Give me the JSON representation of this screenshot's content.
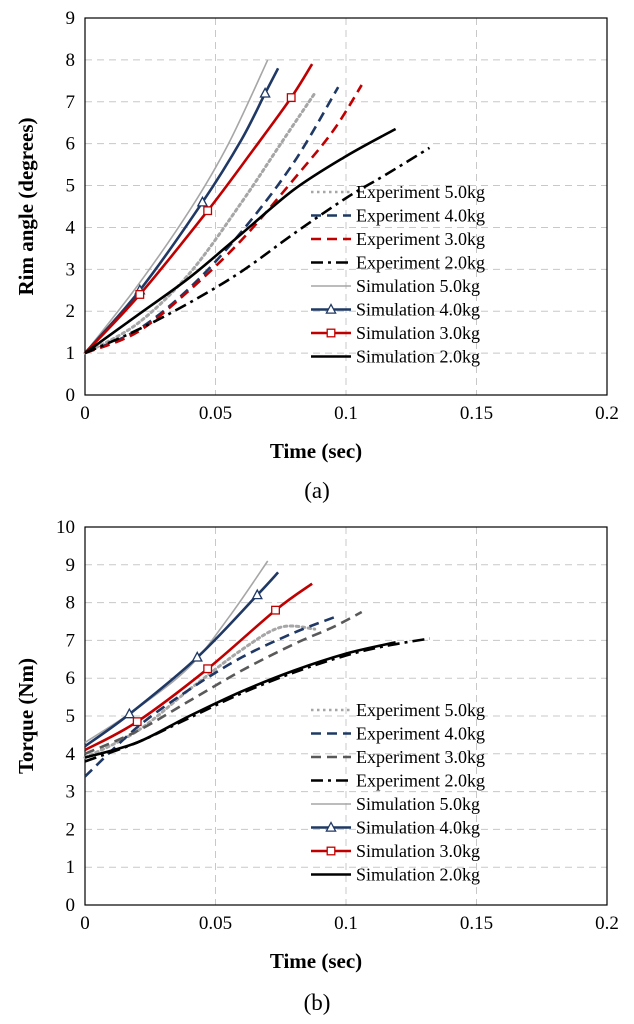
{
  "chart_data": [
    {
      "type": "line",
      "panel_label": "(a)",
      "title": "",
      "xlabel": "Time (sec)",
      "ylabel": "Rim angle (degrees)",
      "xlim": [
        0,
        0.2
      ],
      "ylim": [
        0,
        9
      ],
      "xticks": [
        0,
        0.05,
        0.1,
        0.15,
        0.2
      ],
      "xtick_labels": [
        "0",
        "0.05",
        "0.1",
        "0.15",
        "0.2"
      ],
      "yticks": [
        0,
        1,
        2,
        3,
        4,
        5,
        6,
        7,
        8,
        9
      ],
      "ytick_labels": [
        "0",
        "1",
        "2",
        "3",
        "4",
        "5",
        "6",
        "7",
        "8",
        "9"
      ],
      "grid": true,
      "legend_position": "lower-right",
      "series": [
        {
          "name": "Experiment 5.0kg",
          "style": "dotted",
          "marker": "none",
          "color": "#a6a6a6",
          "points": [
            [
              0,
              1.0
            ],
            [
              0.02,
              1.7
            ],
            [
              0.04,
              2.9
            ],
            [
              0.06,
              4.6
            ],
            [
              0.075,
              6.0
            ],
            [
              0.088,
              7.2
            ]
          ]
        },
        {
          "name": "Experiment 4.0kg",
          "style": "dashed",
          "marker": "none",
          "color": "#1f3864",
          "points": [
            [
              0,
              1.0
            ],
            [
              0.02,
              1.55
            ],
            [
              0.04,
              2.55
            ],
            [
              0.06,
              3.9
            ],
            [
              0.08,
              5.55
            ],
            [
              0.097,
              7.35
            ]
          ]
        },
        {
          "name": "Experiment 3.0kg",
          "style": "dashed",
          "marker": "none",
          "color": "#c00000",
          "points": [
            [
              0,
              1.0
            ],
            [
              0.02,
              1.5
            ],
            [
              0.04,
              2.5
            ],
            [
              0.06,
              3.7
            ],
            [
              0.08,
              5.15
            ],
            [
              0.095,
              6.3
            ],
            [
              0.106,
              7.4
            ]
          ]
        },
        {
          "name": "Experiment 2.0kg",
          "style": "dashdot",
          "marker": "none",
          "color": "#000000",
          "points": [
            [
              0,
              1.0
            ],
            [
              0.02,
              1.55
            ],
            [
              0.04,
              2.2
            ],
            [
              0.06,
              2.95
            ],
            [
              0.08,
              3.85
            ],
            [
              0.1,
              4.7
            ],
            [
              0.115,
              5.25
            ],
            [
              0.132,
              5.9
            ]
          ]
        },
        {
          "name": "Simulation 5.0kg",
          "style": "solid",
          "marker": "none",
          "color": "#a6a6a6",
          "points": [
            [
              0,
              1.0
            ],
            [
              0.02,
              2.6
            ],
            [
              0.04,
              4.4
            ],
            [
              0.055,
              6.0
            ],
            [
              0.07,
              8.0
            ]
          ]
        },
        {
          "name": "Simulation 4.0kg",
          "style": "solid",
          "marker": "triangle",
          "color": "#1f3864",
          "points": [
            [
              0,
              1.0
            ],
            [
              0.021,
              2.5
            ],
            [
              0.045,
              4.6
            ],
            [
              0.06,
              6.1
            ],
            [
              0.069,
              7.2
            ],
            [
              0.074,
              7.8
            ]
          ],
          "marker_points": [
            [
              0.021,
              2.5
            ],
            [
              0.045,
              4.6
            ],
            [
              0.069,
              7.2
            ]
          ]
        },
        {
          "name": "Simulation 3.0kg",
          "style": "solid",
          "marker": "square",
          "color": "#c00000",
          "points": [
            [
              0,
              1.0
            ],
            [
              0.021,
              2.4
            ],
            [
              0.047,
              4.4
            ],
            [
              0.065,
              5.9
            ],
            [
              0.079,
              7.1
            ],
            [
              0.087,
              7.9
            ]
          ],
          "marker_points": [
            [
              0.021,
              2.4
            ],
            [
              0.047,
              4.4
            ],
            [
              0.079,
              7.1
            ]
          ]
        },
        {
          "name": "Simulation 2.0kg",
          "style": "solid",
          "marker": "none",
          "color": "#000000",
          "points": [
            [
              0,
              1.0
            ],
            [
              0.02,
              1.9
            ],
            [
              0.04,
              2.8
            ],
            [
              0.06,
              3.85
            ],
            [
              0.08,
              4.9
            ],
            [
              0.1,
              5.7
            ],
            [
              0.119,
              6.35
            ]
          ]
        }
      ]
    },
    {
      "type": "line",
      "panel_label": "(b)",
      "title": "",
      "xlabel": "Time (sec)",
      "ylabel": "Torque (Nm)",
      "xlim": [
        0,
        0.2
      ],
      "ylim": [
        0,
        10
      ],
      "xticks": [
        0,
        0.05,
        0.1,
        0.15,
        0.2
      ],
      "xtick_labels": [
        "0",
        "0.05",
        "0.1",
        "0.15",
        "0.2"
      ],
      "yticks": [
        0,
        1,
        2,
        3,
        4,
        5,
        6,
        7,
        8,
        9,
        10
      ],
      "ytick_labels": [
        "0",
        "1",
        "2",
        "3",
        "4",
        "5",
        "6",
        "7",
        "8",
        "9",
        "10"
      ],
      "grid": true,
      "legend_position": "lower-right",
      "series": [
        {
          "name": "Experiment 5.0kg",
          "style": "dotted",
          "marker": "none",
          "color": "#a6a6a6",
          "points": [
            [
              0,
              3.9
            ],
            [
              0.02,
              4.6
            ],
            [
              0.04,
              5.7
            ],
            [
              0.06,
              6.75
            ],
            [
              0.075,
              7.35
            ],
            [
              0.088,
              7.3
            ]
          ]
        },
        {
          "name": "Experiment 4.0kg",
          "style": "dashed",
          "marker": "none",
          "color": "#1f3864",
          "points": [
            [
              0,
              3.4
            ],
            [
              0.02,
              4.7
            ],
            [
              0.04,
              5.7
            ],
            [
              0.06,
              6.55
            ],
            [
              0.08,
              7.2
            ],
            [
              0.097,
              7.65
            ]
          ]
        },
        {
          "name": "Experiment 3.0kg",
          "style": "dashed",
          "marker": "none",
          "color": "#595959",
          "points": [
            [
              0,
              4.0
            ],
            [
              0.02,
              4.6
            ],
            [
              0.04,
              5.4
            ],
            [
              0.06,
              6.2
            ],
            [
              0.08,
              6.9
            ],
            [
              0.095,
              7.35
            ],
            [
              0.106,
              7.75
            ]
          ]
        },
        {
          "name": "Experiment 2.0kg",
          "style": "dashdot",
          "marker": "none",
          "color": "#000000",
          "points": [
            [
              0,
              3.8
            ],
            [
              0.02,
              4.3
            ],
            [
              0.04,
              4.95
            ],
            [
              0.06,
              5.6
            ],
            [
              0.08,
              6.15
            ],
            [
              0.1,
              6.6
            ],
            [
              0.115,
              6.85
            ],
            [
              0.132,
              7.05
            ]
          ]
        },
        {
          "name": "Simulation 5.0kg",
          "style": "solid",
          "marker": "none",
          "color": "#a6a6a6",
          "points": [
            [
              0,
              4.3
            ],
            [
              0.02,
              5.2
            ],
            [
              0.04,
              6.3
            ],
            [
              0.055,
              7.6
            ],
            [
              0.07,
              9.1
            ]
          ]
        },
        {
          "name": "Simulation 4.0kg",
          "style": "solid",
          "marker": "triangle",
          "color": "#1f3864",
          "points": [
            [
              0,
              4.2
            ],
            [
              0.017,
              5.05
            ],
            [
              0.043,
              6.55
            ],
            [
              0.066,
              8.2
            ],
            [
              0.074,
              8.8
            ]
          ],
          "marker_points": [
            [
              0.017,
              5.05
            ],
            [
              0.043,
              6.55
            ],
            [
              0.066,
              8.2
            ]
          ]
        },
        {
          "name": "Simulation 3.0kg",
          "style": "solid",
          "marker": "square",
          "color": "#c00000",
          "points": [
            [
              0,
              4.1
            ],
            [
              0.02,
              4.85
            ],
            [
              0.047,
              6.25
            ],
            [
              0.073,
              7.8
            ],
            [
              0.087,
              8.5
            ]
          ],
          "marker_points": [
            [
              0.02,
              4.85
            ],
            [
              0.047,
              6.25
            ],
            [
              0.073,
              7.8
            ]
          ]
        },
        {
          "name": "Simulation 2.0kg",
          "style": "solid",
          "marker": "none",
          "color": "#000000",
          "points": [
            [
              0,
              3.9
            ],
            [
              0.02,
              4.3
            ],
            [
              0.04,
              5.0
            ],
            [
              0.06,
              5.65
            ],
            [
              0.08,
              6.2
            ],
            [
              0.1,
              6.65
            ],
            [
              0.119,
              6.95
            ]
          ]
        }
      ]
    }
  ]
}
